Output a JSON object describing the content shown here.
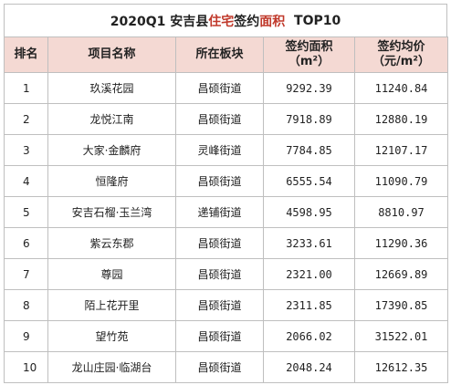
{
  "title": {
    "prefix": "2020Q1 安吉县 ",
    "highlight": "住宅",
    "mid": "签约",
    "highlight2": "面积",
    "suffix": "  TOP10"
  },
  "headers": {
    "rank": "排名",
    "project": "项目名称",
    "block": "所在板块",
    "area_line1": "签约面积",
    "area_line2": "（m²）",
    "price_line1": "签约均价",
    "price_line2": "（元/m²）"
  },
  "rows": [
    {
      "rank": "1",
      "project": "玖溪花园",
      "block": "昌硕街道",
      "area": "9292.39",
      "price": "11240.84"
    },
    {
      "rank": "2",
      "project": "龙悦江南",
      "block": "昌硕街道",
      "area": "7918.89",
      "price": "12880.19"
    },
    {
      "rank": "3",
      "project": "大家·金麟府",
      "block": "灵峰街道",
      "area": "7784.85",
      "price": "12107.17"
    },
    {
      "rank": "4",
      "project": "恒隆府",
      "block": "昌硕街道",
      "area": "6555.54",
      "price": "11090.79"
    },
    {
      "rank": "5",
      "project": "安吉石榴·玉兰湾",
      "block": "递铺街道",
      "area": "4598.95",
      "price": "8810.97"
    },
    {
      "rank": "6",
      "project": "紫云东郡",
      "block": "昌硕街道",
      "area": "3233.61",
      "price": "11290.36"
    },
    {
      "rank": "7",
      "project": "尊园",
      "block": "昌硕街道",
      "area": "2321.00",
      "price": "12669.89"
    },
    {
      "rank": "8",
      "project": "陌上花开里",
      "block": "昌硕街道",
      "area": "2311.85",
      "price": "17390.85"
    },
    {
      "rank": "9",
      "project": "望竹苑",
      "block": "昌硕街道",
      "area": "2066.02",
      "price": "31522.01"
    },
    {
      "rank": "10",
      "project": "龙山庄园·临湖台",
      "block": "昌硕街道",
      "area": "2048.24",
      "price": "12612.35"
    }
  ]
}
